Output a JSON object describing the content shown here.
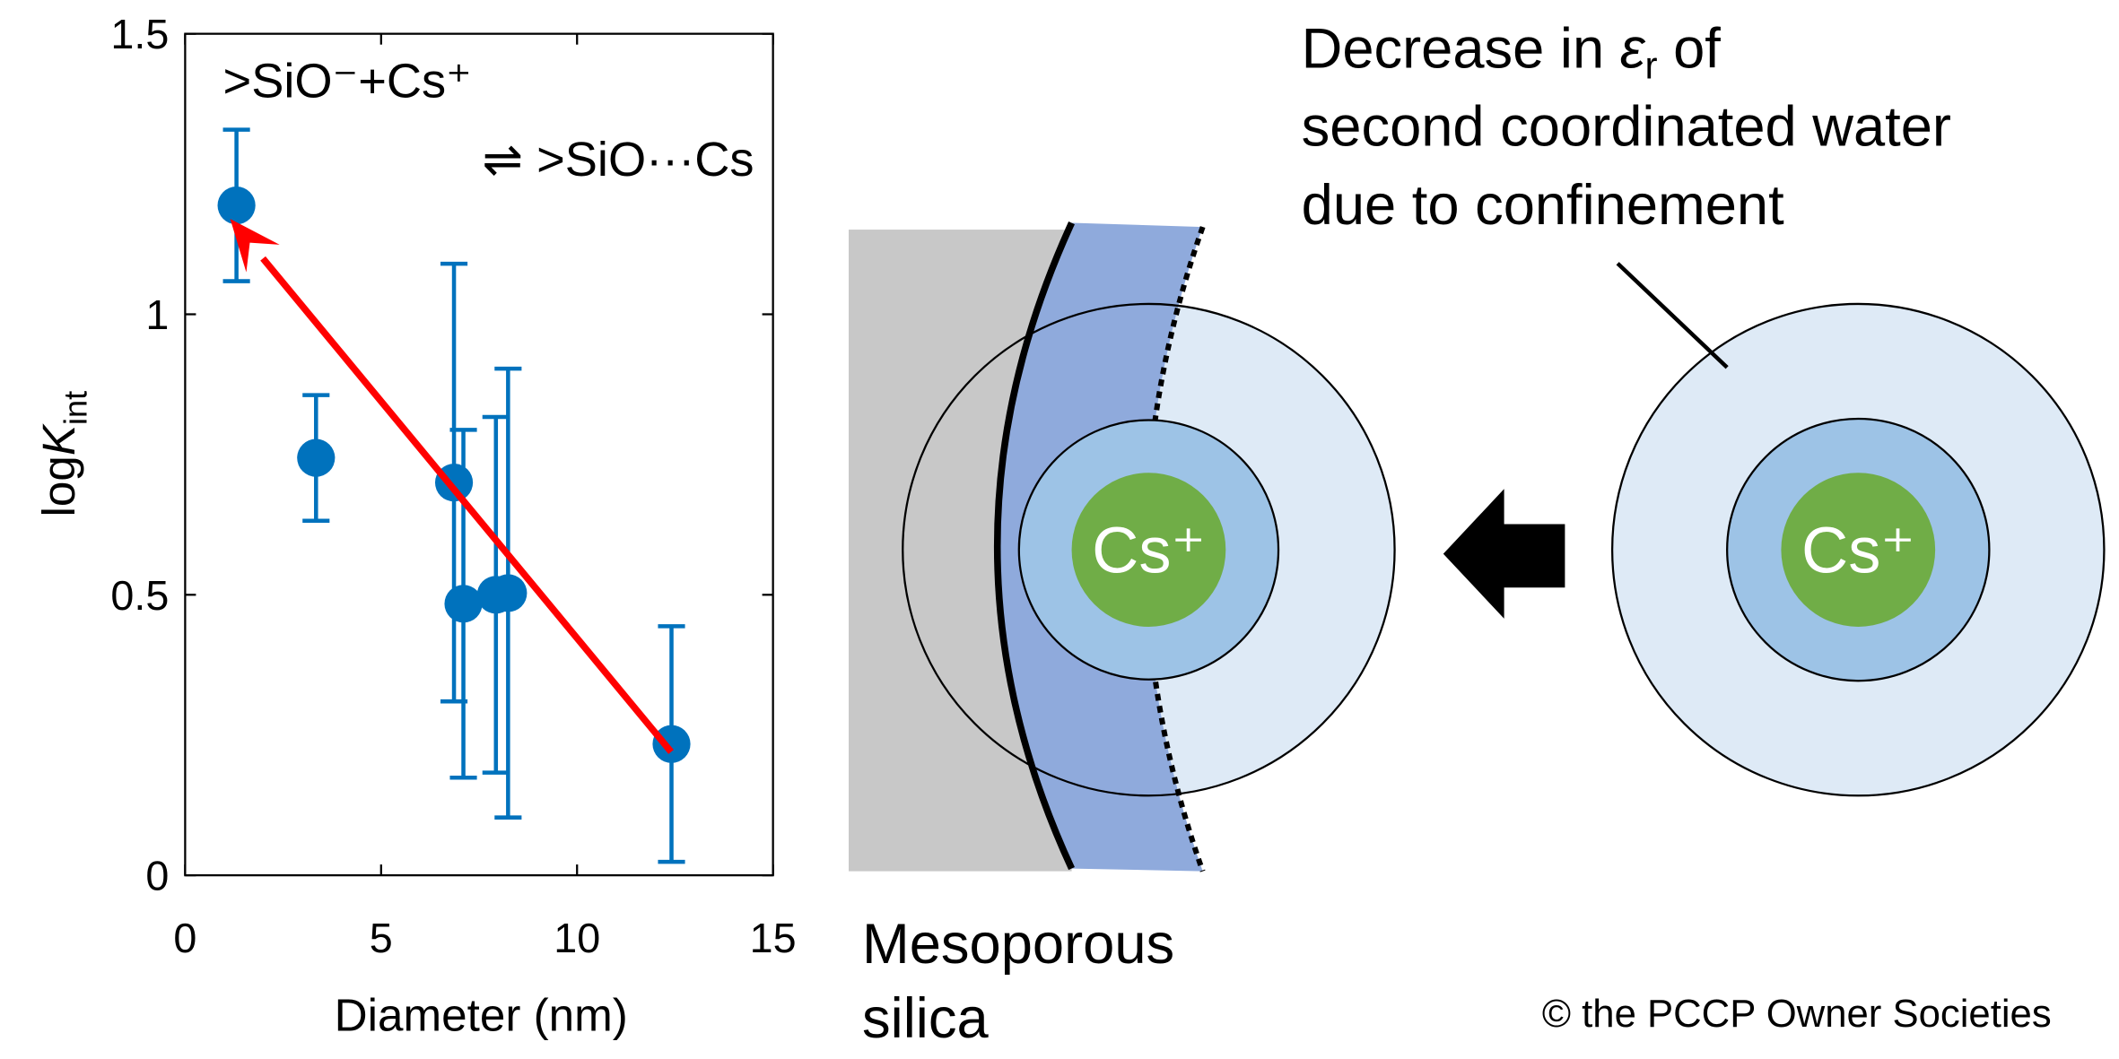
{
  "chart_data": {
    "type": "scatter",
    "xlabel": "Diameter (nm)",
    "ylabel": [
      "log",
      "K",
      "int"
    ],
    "annotations": [
      ">SiO⁻+Cs⁺",
      "⇌ >SiO···Cs"
    ],
    "xlim": [
      0,
      15
    ],
    "xticks": [
      0,
      5,
      10,
      15
    ],
    "ylim": [
      0,
      1.5
    ],
    "yticks": [
      0,
      0.5,
      1,
      1.5
    ],
    "series": [
      {
        "color": "#0072bd",
        "x": [
          1.31,
          3.34,
          6.86,
          7.1,
          7.93,
          8.24,
          12.41
        ],
        "values": [
          1.194,
          0.744,
          0.7,
          0.484,
          0.5,
          0.503,
          0.234
        ],
        "errors": [
          0.135,
          0.112,
          0.39,
          0.31,
          0.317,
          0.4,
          0.21
        ]
      }
    ],
    "arrow": {
      "color": "#ff0000",
      "x": [
        12.4,
        1.15
      ],
      "y": [
        0.22,
        1.17
      ]
    }
  },
  "diagram": {
    "ion": "Cs⁺",
    "ion_right": "Cs⁺",
    "silica": [
      "Mesoporous",
      "silica"
    ],
    "note_line1": [
      "Decrease in ",
      "ε",
      "r",
      " of"
    ],
    "note_lines": [
      "second coordinated water",
      "due to confinement"
    ],
    "copyright": "© the PCCP Owner Societies"
  }
}
